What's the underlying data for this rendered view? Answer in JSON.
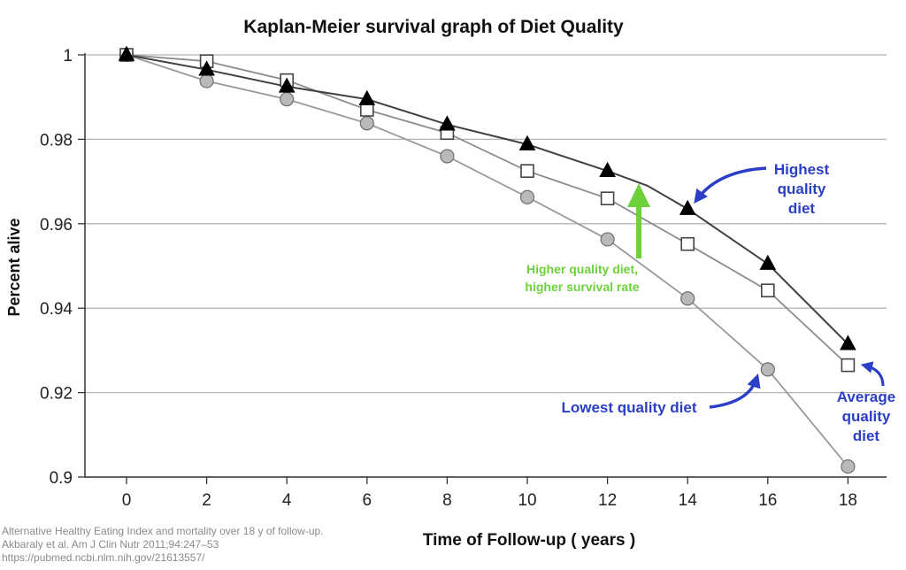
{
  "chart_data": {
    "type": "line",
    "title": "Kaplan-Meier survival graph of Diet Quality",
    "xlabel": "Time of Follow-up ( years )",
    "ylabel": "Percent alive",
    "x": [
      0,
      2,
      4,
      6,
      8,
      10,
      12,
      14,
      16,
      18
    ],
    "xticks": [
      "0",
      "2",
      "4",
      "6",
      "8",
      "10",
      "12",
      "14",
      "16",
      "18"
    ],
    "ylim": [
      0.9,
      1.0
    ],
    "yticks": [
      "0.9",
      "0.92",
      "0.94",
      "0.96",
      "0.98",
      "1"
    ],
    "grid": "horizontal",
    "series": [
      {
        "name": "Highest quality diet",
        "marker": "triangle",
        "line_color": "#404040",
        "marker_color": "#000000",
        "x": [
          0,
          2,
          4,
          6,
          8,
          10,
          12,
          13,
          14,
          16,
          18
        ],
        "values": [
          1.0,
          0.9965,
          0.9925,
          0.9895,
          0.9835,
          0.9788,
          0.9725,
          0.969,
          0.9635,
          0.9505,
          0.9315
        ],
        "marked": [
          true,
          true,
          true,
          true,
          true,
          true,
          true,
          false,
          true,
          true,
          true
        ]
      },
      {
        "name": "Average quality diet",
        "marker": "square",
        "line_color": "#8c8c8c",
        "marker_color": "#ffffff",
        "x": [
          0,
          2,
          4,
          6,
          8,
          10,
          12,
          14,
          16,
          18
        ],
        "values": [
          1.0,
          0.9985,
          0.994,
          0.987,
          0.9815,
          0.9725,
          0.966,
          0.9552,
          0.9442,
          0.9265
        ],
        "marked": [
          true,
          true,
          true,
          true,
          true,
          true,
          true,
          true,
          true,
          true
        ]
      },
      {
        "name": "Lowest quality diet",
        "marker": "circle",
        "line_color": "#9a9a9a",
        "marker_color": "#b9b9b9",
        "x": [
          0,
          2,
          4,
          6,
          8,
          10,
          12,
          14,
          16,
          18
        ],
        "values": [
          1.0,
          0.9938,
          0.9895,
          0.9838,
          0.976,
          0.9663,
          0.9563,
          0.9423,
          0.9255,
          0.9025
        ],
        "marked": [
          true,
          true,
          true,
          true,
          true,
          true,
          true,
          true,
          true,
          true
        ]
      }
    ],
    "annotations": [
      {
        "id": "highest",
        "lines": [
          "Highest",
          "quality",
          "diet"
        ],
        "color": "#2a3fc6"
      },
      {
        "id": "average",
        "lines": [
          "Average",
          "quality",
          "diet"
        ],
        "color": "#2a3fc6"
      },
      {
        "id": "lowest",
        "lines": [
          "Lowest quality diet"
        ],
        "color": "#2a3fc6"
      },
      {
        "id": "higher",
        "lines": [
          "Higher quality diet,",
          "higher survival rate"
        ],
        "color": "#6cd13a"
      }
    ],
    "source": [
      "Alternative Healthy Eating Index and mortality over 18 y of follow-up.",
      "Akbaraly et al. Am J Clin Nutr 2011;94:247–53",
      "https://pubmed.ncbi.nlm.nih.gov/21613557/"
    ]
  }
}
